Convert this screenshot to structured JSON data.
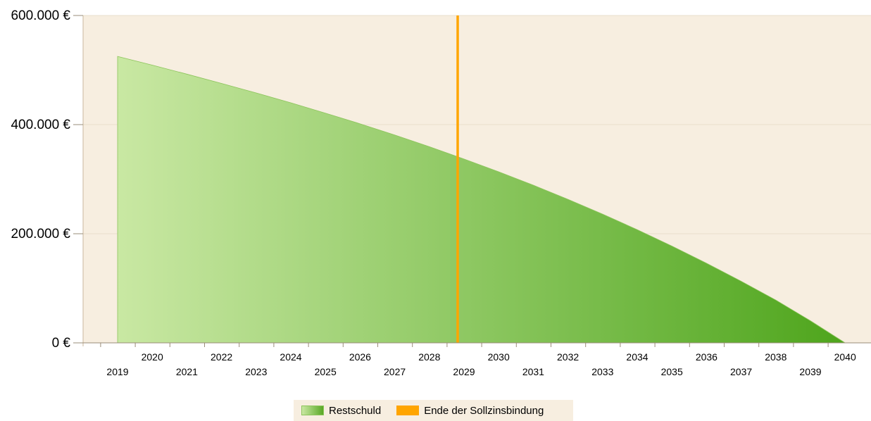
{
  "chart_data": {
    "type": "area",
    "title": "",
    "xlabel": "",
    "ylabel": "",
    "x": [
      2019,
      2020,
      2021,
      2022,
      2023,
      2024,
      2025,
      2026,
      2027,
      2028,
      2029,
      2030,
      2031,
      2032,
      2033,
      2034,
      2035,
      2036,
      2037,
      2038,
      2039,
      2040
    ],
    "x_tick_labels": [
      "2019",
      "2020",
      "2021",
      "2022",
      "2023",
      "2024",
      "2025",
      "2026",
      "2027",
      "2028",
      "2029",
      "2030",
      "2031",
      "2032",
      "2033",
      "2034",
      "2035",
      "2036",
      "2037",
      "2038",
      "2039",
      "2040"
    ],
    "series": [
      {
        "name": "Restschuld",
        "values": [
          525000,
          509000,
          492500,
          475500,
          458000,
          440000,
          421000,
          401500,
          381000,
          359500,
          337000,
          313500,
          289000,
          263000,
          236000,
          207500,
          177500,
          146000,
          113000,
          78500,
          40500,
          0
        ],
        "color_start": "#c9e8a3",
        "color_end": "#4ea51c"
      }
    ],
    "marker": {
      "name": "Ende der Sollzinsbindung",
      "x": 2029,
      "color": "#ffa500"
    },
    "y_ticks": [
      0,
      200000,
      400000,
      600000
    ],
    "y_tick_labels": [
      "0 €",
      "200.000 €",
      "400.000 €",
      "600.000 €"
    ],
    "ylim": [
      0,
      600000
    ],
    "grid": true,
    "legend_position": "bottom-center",
    "plot_background": "#f7eee0"
  },
  "legend": {
    "restschuld_label": "Restschuld",
    "sollzins_label": "Ende der Sollzinsbindung"
  }
}
